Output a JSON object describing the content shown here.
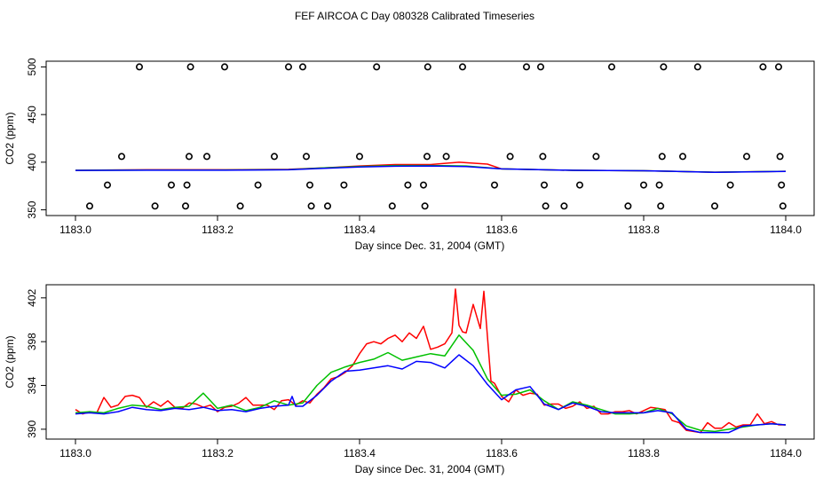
{
  "title": "FEF AIRCOA C  Day 080328  Calibrated Timeseries",
  "chart_data": [
    {
      "type": "line",
      "ylabel": "CO2 (ppm)",
      "xlabel": "Day since Dec. 31, 2004 (GMT)",
      "xlim": [
        1183.0,
        1184.0
      ],
      "ylim": [
        344,
        506
      ],
      "x_ticks": [
        "1183.0",
        "1183.2",
        "1183.4",
        "1183.6",
        "1183.8",
        "1184.0"
      ],
      "y_ticks": [
        "350",
        "400",
        "450",
        "500"
      ],
      "x_tick_values": [
        1183.0,
        1183.2,
        1183.4,
        1183.6,
        1183.8,
        1184.0
      ],
      "y_tick_values": [
        350,
        400,
        450,
        500
      ],
      "grid": false,
      "series": [
        {
          "color": "#ff0000",
          "x": [
            1183.0,
            1183.1,
            1183.2,
            1183.3,
            1183.35,
            1183.4,
            1183.45,
            1183.5,
            1183.54,
            1183.58,
            1183.6,
            1183.7,
            1183.8,
            1183.9,
            1184.0
          ],
          "values": [
            391.5,
            392,
            392,
            392.5,
            394,
            396,
            397.5,
            397.5,
            400,
            398,
            393,
            391.5,
            391,
            389.5,
            390.5
          ]
        },
        {
          "color": "#00c000",
          "x": [
            1183.0,
            1183.1,
            1183.2,
            1183.3,
            1183.35,
            1183.4,
            1183.45,
            1183.5,
            1183.55,
            1183.6,
            1183.7,
            1183.8,
            1183.9,
            1184.0
          ],
          "values": [
            391.5,
            391.8,
            391.8,
            392.2,
            394,
            395.5,
            396.5,
            396.5,
            396,
            393,
            391.5,
            391,
            389.5,
            390.5
          ]
        },
        {
          "color": "#0000ff",
          "x": [
            1183.0,
            1183.1,
            1183.2,
            1183.3,
            1183.35,
            1183.4,
            1183.45,
            1183.5,
            1183.55,
            1183.6,
            1183.7,
            1183.8,
            1183.9,
            1184.0
          ],
          "values": [
            391.4,
            391.6,
            391.6,
            392,
            393.5,
            395,
            395.8,
            396,
            395.5,
            393,
            391.5,
            391,
            389.4,
            390.4
          ]
        }
      ],
      "markers": {
        "symbol": "open-circle",
        "points": [
          [
            1183.02,
            354
          ],
          [
            1183.045,
            376
          ],
          [
            1183.065,
            406
          ],
          [
            1183.09,
            500
          ],
          [
            1183.112,
            354
          ],
          [
            1183.135,
            376
          ],
          [
            1183.155,
            354
          ],
          [
            1183.157,
            376
          ],
          [
            1183.16,
            406
          ],
          [
            1183.162,
            500
          ],
          [
            1183.185,
            406
          ],
          [
            1183.21,
            500
          ],
          [
            1183.232,
            354
          ],
          [
            1183.257,
            376
          ],
          [
            1183.28,
            406
          ],
          [
            1183.3,
            500
          ],
          [
            1183.32,
            500
          ],
          [
            1183.325,
            406
          ],
          [
            1183.33,
            376
          ],
          [
            1183.332,
            354
          ],
          [
            1183.355,
            354
          ],
          [
            1183.378,
            376
          ],
          [
            1183.4,
            406
          ],
          [
            1183.424,
            500
          ],
          [
            1183.446,
            354
          ],
          [
            1183.468,
            376
          ],
          [
            1183.49,
            376
          ],
          [
            1183.492,
            354
          ],
          [
            1183.495,
            406
          ],
          [
            1183.496,
            500
          ],
          [
            1183.522,
            406
          ],
          [
            1183.545,
            500
          ],
          [
            1183.59,
            376
          ],
          [
            1183.612,
            406
          ],
          [
            1183.635,
            500
          ],
          [
            1183.655,
            500
          ],
          [
            1183.658,
            406
          ],
          [
            1183.66,
            376
          ],
          [
            1183.662,
            354
          ],
          [
            1183.688,
            354
          ],
          [
            1183.71,
            376
          ],
          [
            1183.733,
            406
          ],
          [
            1183.755,
            500
          ],
          [
            1183.778,
            354
          ],
          [
            1183.8,
            376
          ],
          [
            1183.822,
            376
          ],
          [
            1183.824,
            354
          ],
          [
            1183.826,
            406
          ],
          [
            1183.828,
            500
          ],
          [
            1183.855,
            406
          ],
          [
            1183.876,
            500
          ],
          [
            1183.9,
            354
          ],
          [
            1183.922,
            376
          ],
          [
            1183.945,
            406
          ],
          [
            1183.968,
            500
          ],
          [
            1183.99,
            500
          ],
          [
            1183.992,
            406
          ],
          [
            1183.994,
            376
          ],
          [
            1183.996,
            354
          ]
        ]
      }
    },
    {
      "type": "line",
      "ylabel": "CO2 (ppm)",
      "xlabel": "Day since Dec. 31, 2004 (GMT)",
      "xlim": [
        1183.0,
        1184.0
      ],
      "ylim": [
        389.1,
        403.2
      ],
      "x_ticks": [
        "1183.0",
        "1183.2",
        "1183.4",
        "1183.6",
        "1183.8",
        "1184.0"
      ],
      "y_ticks": [
        "390",
        "394",
        "398",
        "402"
      ],
      "x_tick_values": [
        1183.0,
        1183.2,
        1183.4,
        1183.6,
        1183.8,
        1184.0
      ],
      "y_tick_values": [
        390,
        394,
        398,
        402
      ],
      "grid": false,
      "series": [
        {
          "color": "#ff0000",
          "x": [
            1183.0,
            1183.01,
            1183.02,
            1183.03,
            1183.04,
            1183.05,
            1183.06,
            1183.07,
            1183.08,
            1183.09,
            1183.1,
            1183.11,
            1183.12,
            1183.13,
            1183.14,
            1183.15,
            1183.16,
            1183.17,
            1183.18,
            1183.19,
            1183.2,
            1183.21,
            1183.22,
            1183.23,
            1183.24,
            1183.25,
            1183.26,
            1183.27,
            1183.28,
            1183.29,
            1183.3,
            1183.31,
            1183.32,
            1183.33,
            1183.34,
            1183.35,
            1183.36,
            1183.37,
            1183.38,
            1183.39,
            1183.4,
            1183.41,
            1183.42,
            1183.43,
            1183.44,
            1183.45,
            1183.46,
            1183.47,
            1183.48,
            1183.49,
            1183.5,
            1183.51,
            1183.52,
            1183.53,
            1183.535,
            1183.54,
            1183.545,
            1183.55,
            1183.56,
            1183.57,
            1183.575,
            1183.58,
            1183.585,
            1183.59,
            1183.6,
            1183.61,
            1183.62,
            1183.63,
            1183.64,
            1183.65,
            1183.66,
            1183.67,
            1183.68,
            1183.69,
            1183.7,
            1183.71,
            1183.72,
            1183.73,
            1183.74,
            1183.75,
            1183.76,
            1183.77,
            1183.78,
            1183.79,
            1183.8,
            1183.81,
            1183.82,
            1183.83,
            1183.84,
            1183.85,
            1183.86,
            1183.87,
            1183.88,
            1183.89,
            1183.9,
            1183.91,
            1183.92,
            1183.93,
            1183.94,
            1183.95,
            1183.96,
            1183.97,
            1183.98,
            1183.99,
            1184.0
          ],
          "values": [
            391.8,
            391.4,
            391.6,
            391.5,
            392.9,
            392,
            392.2,
            393,
            393.1,
            392.9,
            392,
            392.5,
            392.1,
            392.6,
            392,
            391.9,
            392.4,
            392.3,
            392,
            392.2,
            391.6,
            392,
            392.1,
            392.4,
            392.9,
            392.2,
            392.2,
            392.2,
            391.8,
            392.6,
            392.7,
            392.2,
            392.6,
            392.4,
            393.2,
            393.8,
            394.6,
            394.8,
            395.2,
            395.8,
            396.9,
            397.8,
            398,
            397.8,
            398.3,
            398.6,
            398,
            398.8,
            398.3,
            399.4,
            397.3,
            397.5,
            397.8,
            398.8,
            402.8,
            399.5,
            398.9,
            398.8,
            401.4,
            399.2,
            402.6,
            398.5,
            394.4,
            394.2,
            393,
            392.5,
            393.6,
            393.1,
            393.3,
            393.2,
            392.2,
            392.3,
            392.3,
            391.9,
            392.1,
            392.5,
            391.9,
            392.1,
            391.4,
            391.4,
            391.6,
            391.6,
            391.7,
            391.4,
            391.7,
            392,
            391.9,
            391.8,
            390.8,
            390.6,
            389.9,
            389.8,
            389.7,
            390.6,
            390.1,
            390.1,
            390.6,
            390.2,
            390.4,
            390.4,
            391.4,
            390.5,
            390.7,
            390.4,
            390.4
          ]
        },
        {
          "color": "#00c000",
          "x": [
            1183.0,
            1183.02,
            1183.04,
            1183.06,
            1183.08,
            1183.1,
            1183.12,
            1183.14,
            1183.16,
            1183.18,
            1183.2,
            1183.22,
            1183.24,
            1183.26,
            1183.28,
            1183.3,
            1183.32,
            1183.34,
            1183.36,
            1183.38,
            1183.4,
            1183.42,
            1183.44,
            1183.46,
            1183.48,
            1183.5,
            1183.52,
            1183.54,
            1183.56,
            1183.58,
            1183.6,
            1183.62,
            1183.64,
            1183.66,
            1183.68,
            1183.7,
            1183.72,
            1183.74,
            1183.76,
            1183.78,
            1183.8,
            1183.82,
            1183.84,
            1183.86,
            1183.88,
            1183.9,
            1183.92,
            1183.94,
            1183.96,
            1183.98,
            1184.0
          ],
          "values": [
            391.5,
            391.6,
            391.5,
            391.9,
            392.2,
            392.1,
            391.8,
            392,
            392.1,
            393.3,
            391.9,
            392.2,
            391.7,
            392,
            392.6,
            392.2,
            392.4,
            394,
            395.2,
            395.7,
            396.1,
            396.4,
            397,
            396.3,
            396.6,
            396.9,
            396.7,
            398.6,
            397.2,
            394.6,
            393.1,
            393.2,
            393.6,
            392.6,
            391.8,
            392.5,
            392.2,
            391.8,
            391.4,
            391.4,
            391.5,
            391.9,
            391.4,
            390.3,
            389.9,
            389.8,
            390,
            390.2,
            390.4,
            390.5,
            390.4
          ]
        },
        {
          "color": "#0000ff",
          "x": [
            1183.0,
            1183.02,
            1183.04,
            1183.06,
            1183.08,
            1183.1,
            1183.12,
            1183.14,
            1183.16,
            1183.18,
            1183.2,
            1183.22,
            1183.24,
            1183.26,
            1183.28,
            1183.3,
            1183.305,
            1183.31,
            1183.32,
            1183.34,
            1183.36,
            1183.38,
            1183.4,
            1183.42,
            1183.44,
            1183.46,
            1183.48,
            1183.5,
            1183.52,
            1183.54,
            1183.56,
            1183.58,
            1183.6,
            1183.62,
            1183.64,
            1183.66,
            1183.68,
            1183.7,
            1183.72,
            1183.74,
            1183.76,
            1183.78,
            1183.8,
            1183.82,
            1183.84,
            1183.86,
            1183.88,
            1183.9,
            1183.92,
            1183.94,
            1183.96,
            1183.98,
            1184.0
          ],
          "values": [
            391.4,
            391.5,
            391.4,
            391.6,
            392,
            391.8,
            391.7,
            391.9,
            391.8,
            392,
            391.7,
            391.8,
            391.6,
            391.9,
            392.1,
            392.2,
            393,
            392.1,
            392.1,
            393.1,
            394.4,
            395.3,
            395.4,
            395.6,
            395.8,
            395.5,
            396.2,
            396.1,
            395.6,
            396.8,
            395.8,
            394.1,
            392.7,
            393.6,
            393.9,
            392.3,
            391.8,
            392.4,
            392.1,
            391.6,
            391.5,
            391.5,
            391.5,
            391.7,
            391.5,
            390,
            389.7,
            389.7,
            389.7,
            390.3,
            390.4,
            390.5,
            390.4
          ]
        }
      ]
    }
  ]
}
